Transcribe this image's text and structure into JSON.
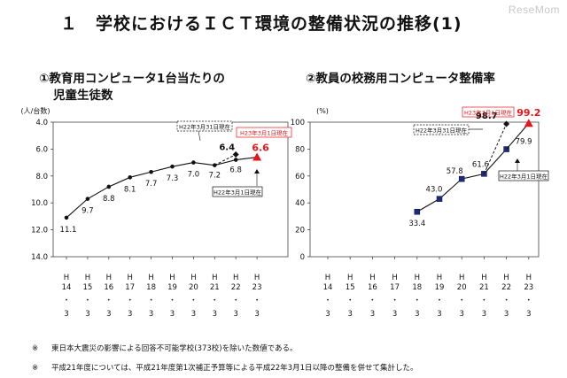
{
  "watermark": "ReseMom",
  "main_title": "１　学校におけるＩＣＴ環境の整備状況の推移(1)",
  "chart_data": [
    {
      "type": "line",
      "title": "①教育用コンピュータ1台当たりの児童生徒数",
      "title_lines": [
        "①教育用コンピュータ1台当たりの",
        "児童生徒数"
      ],
      "ylabel": "(人/台数)",
      "y_inverted": true,
      "ylim": [
        4.0,
        14.0
      ],
      "yticks": [
        "4.0",
        "6.0",
        "8.0",
        "10.0",
        "12.0",
        "14.0"
      ],
      "x_ticks": [
        {
          "era": "H",
          "year": "14",
          "sep": "・",
          "month": "3"
        },
        {
          "era": "H",
          "year": "15",
          "sep": "・",
          "month": "3"
        },
        {
          "era": "H",
          "year": "16",
          "sep": "・",
          "month": "3"
        },
        {
          "era": "H",
          "year": "17",
          "sep": "・",
          "month": "3"
        },
        {
          "era": "H",
          "year": "18",
          "sep": "・",
          "month": "3"
        },
        {
          "era": "H",
          "year": "19",
          "sep": "・",
          "month": "3"
        },
        {
          "era": "H",
          "year": "20",
          "sep": "・",
          "month": "3"
        },
        {
          "era": "H",
          "year": "21",
          "sep": "・",
          "month": "3"
        },
        {
          "era": "H",
          "year": "22",
          "sep": "・",
          "month": "3"
        },
        {
          "era": "H",
          "year": "23",
          "sep": "・",
          "month": "3"
        }
      ],
      "series_main": {
        "values": [
          11.1,
          9.7,
          8.8,
          8.1,
          7.7,
          7.3,
          7.0,
          7.2,
          6.8
        ],
        "labels": [
          "11.1",
          "9.7",
          "8.8",
          "8.1",
          "7.7",
          "7.3",
          "7.0",
          "7.2",
          "6.8"
        ],
        "color": "#000000"
      },
      "point_h23": {
        "value": 6.6,
        "label": "6.6",
        "color": "#e8141a"
      },
      "point_h22_0331": {
        "value": 6.4,
        "label": "6.4"
      },
      "annotations": {
        "h23": "H23年3月1日現在",
        "h22_0331": "H22年3月31日現在",
        "h22_0301": "H22年3月1日現在"
      },
      "grid": false
    },
    {
      "type": "line",
      "title": "②教員の校務用コンピュータ整備率",
      "title_lines": [
        "②教員の校務用コンピュータ整備率"
      ],
      "ylabel": "(%)",
      "ylim": [
        0,
        100
      ],
      "yticks": [
        "0",
        "20",
        "40",
        "60",
        "80",
        "100"
      ],
      "x_ticks": [
        {
          "era": "H",
          "year": "14",
          "sep": "・",
          "month": "3"
        },
        {
          "era": "H",
          "year": "15",
          "sep": "・",
          "month": "3"
        },
        {
          "era": "H",
          "year": "16",
          "sep": "・",
          "month": "3"
        },
        {
          "era": "H",
          "year": "17",
          "sep": "・",
          "month": "3"
        },
        {
          "era": "H",
          "year": "18",
          "sep": "・",
          "month": "3"
        },
        {
          "era": "H",
          "year": "19",
          "sep": "・",
          "month": "3"
        },
        {
          "era": "H",
          "year": "20",
          "sep": "・",
          "month": "3"
        },
        {
          "era": "H",
          "year": "21",
          "sep": "・",
          "month": "3"
        },
        {
          "era": "H",
          "year": "22",
          "sep": "・",
          "month": "3"
        },
        {
          "era": "H",
          "year": "23",
          "sep": "・",
          "month": "3"
        }
      ],
      "series_main": {
        "start_index": 4,
        "values": [
          33.4,
          43.0,
          57.8,
          61.6,
          79.9
        ],
        "labels": [
          "33.4",
          "43.0",
          "57.8",
          "61.6",
          "79.9"
        ],
        "color": "#1a2a8a"
      },
      "point_h23": {
        "value": 99.2,
        "label": "99.2",
        "color": "#e8141a"
      },
      "point_h22_0331": {
        "value": 98.7,
        "label": "98.7"
      },
      "annotations": {
        "h23": "H23年3月1日現在",
        "h22_0331": "H22年3月31日現在",
        "h22_0301": "H22年3月1日現在"
      },
      "grid": false
    }
  ],
  "notes": [
    {
      "mark": "※",
      "text": "東日本大震災の影響による回答不可能学校(373校)を除いた数値である。"
    },
    {
      "mark": "※",
      "text": "平成21年度については、平成21年度第1次補正予算等による平成22年3月1日以降の整備を併せて集計した。"
    }
  ]
}
